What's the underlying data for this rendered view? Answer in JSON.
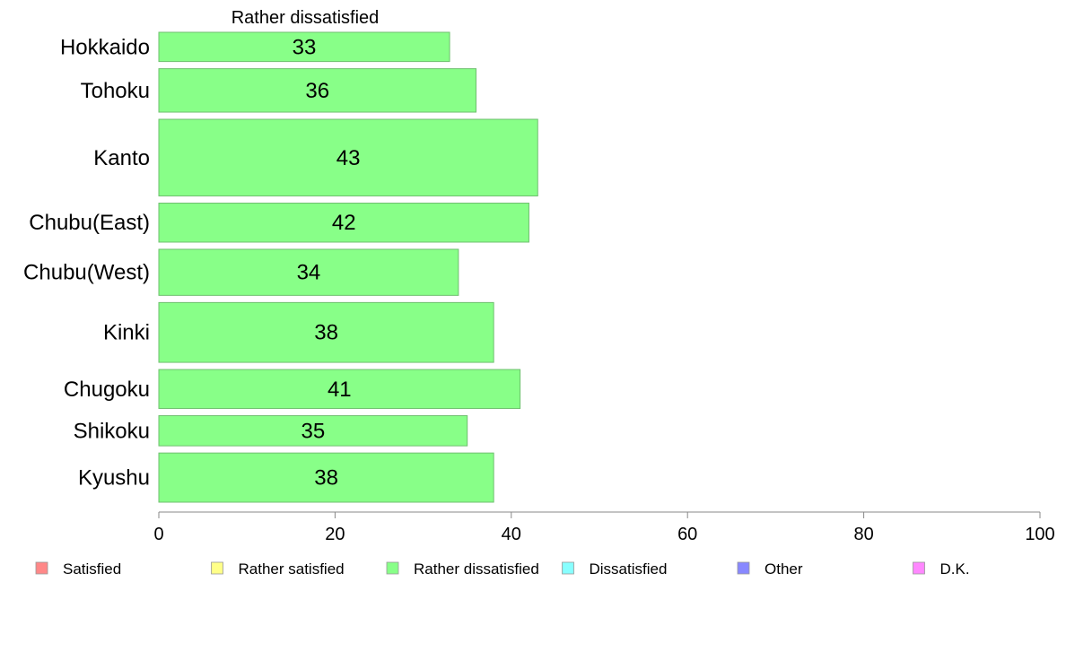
{
  "chart_data": {
    "type": "bar",
    "orientation": "horizontal",
    "title": "Rather dissatisfied",
    "categories": [
      "Hokkaido",
      "Tohoku",
      "Kanto",
      "Chubu(East)",
      "Chubu(West)",
      "Kinki",
      "Chugoku",
      "Shikoku",
      "Kyushu"
    ],
    "series": [
      {
        "name": "Rather dissatisfied",
        "values": [
          33,
          36,
          43,
          42,
          34,
          38,
          41,
          35,
          38
        ],
        "color": "#88ff88"
      }
    ],
    "bar_thickness_weights": [
      0.66,
      0.98,
      1.73,
      0.88,
      1.04,
      1.35,
      0.88,
      0.68,
      1.11
    ],
    "xlim": [
      0,
      100
    ],
    "xticks": [
      0,
      20,
      40,
      60,
      80,
      100
    ],
    "grid": false,
    "legend": {
      "placement": "bottom",
      "entries": [
        {
          "label": "Satisfied",
          "color": "#ff8888"
        },
        {
          "label": "Rather satisfied",
          "color": "#ffff88"
        },
        {
          "label": "Rather dissatisfied",
          "color": "#88ff88"
        },
        {
          "label": "Dissatisfied",
          "color": "#88ffff"
        },
        {
          "label": "Other",
          "color": "#8888ff"
        },
        {
          "label": "D.K.",
          "color": "#ff88ff"
        }
      ]
    }
  }
}
